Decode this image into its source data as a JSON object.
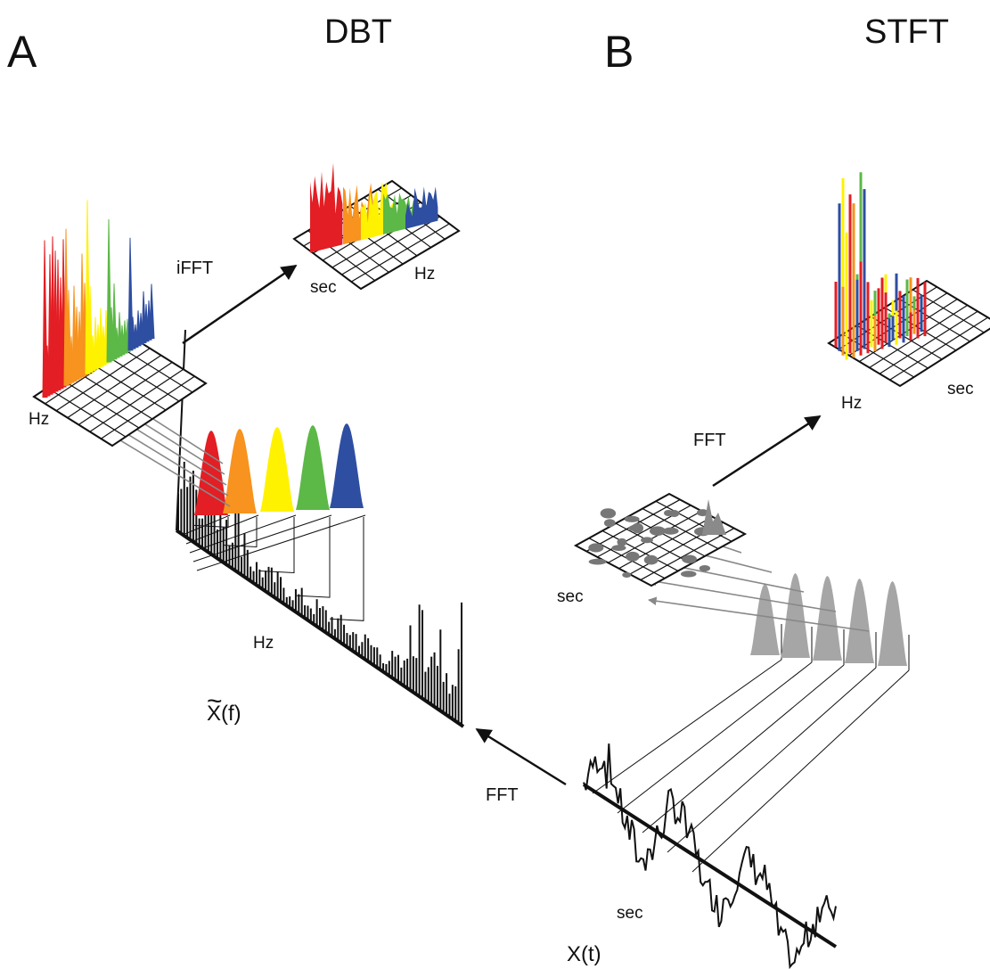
{
  "panel_a": {
    "letter": "A",
    "title": "DBT",
    "spectrum_axis": "Hz",
    "spectrum_label": "X(f)",
    "spectrum_tilde": "~",
    "inverse_op": "iFFT",
    "stack_axis": "Hz",
    "result_time_axis": "sec",
    "result_freq_axis": "Hz"
  },
  "panel_b": {
    "letter": "B",
    "title": "STFT",
    "window_grid_axis": "sec",
    "forward_op": "FFT",
    "result_freq_axis": "Hz",
    "result_time_axis": "sec"
  },
  "signal": {
    "label": "X(t)",
    "axis": "sec",
    "transform_op": "FFT"
  },
  "colors": {
    "band_1": "#e31e24",
    "band_2": "#f7931e",
    "band_3": "#fff200",
    "band_4": "#5cb847",
    "band_5": "#2e4ea1",
    "window_gray": "#a6a6a6",
    "ink": "#111111"
  }
}
